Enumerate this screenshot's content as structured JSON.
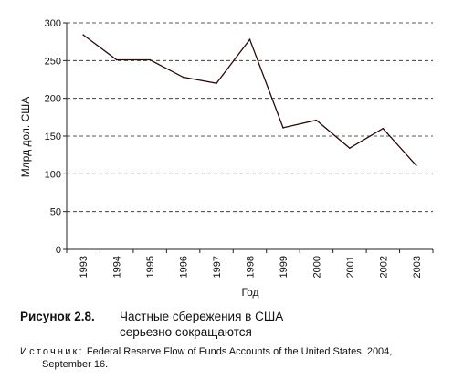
{
  "chart_data": {
    "type": "line",
    "x": [
      "1993",
      "1994",
      "1995",
      "1996",
      "1997",
      "1998",
      "1999",
      "2000",
      "2001",
      "2002",
      "2003"
    ],
    "series": [
      {
        "values": [
          284,
          251,
          251,
          228,
          220,
          278,
          161,
          171,
          134,
          160,
          111
        ]
      }
    ],
    "xlabel": "Год",
    "ylabel": "Млрд дол. США",
    "ylim": [
      0,
      300
    ],
    "yticks": [
      0,
      50,
      100,
      150,
      200,
      250,
      300
    ],
    "grid": "dashed horizontal",
    "legend": "none",
    "line_color": "#2a0a0a"
  },
  "caption": {
    "figure_number": "Рисунок 2.8.",
    "title_line1": "Частные сбережения в США",
    "title_line2": "серьезно сокращаются"
  },
  "source": {
    "label": "Источник:",
    "text_line1": "Federal Reserve Flow of Funds Accounts of the United States, 2004,",
    "text_line2": "September 16."
  }
}
